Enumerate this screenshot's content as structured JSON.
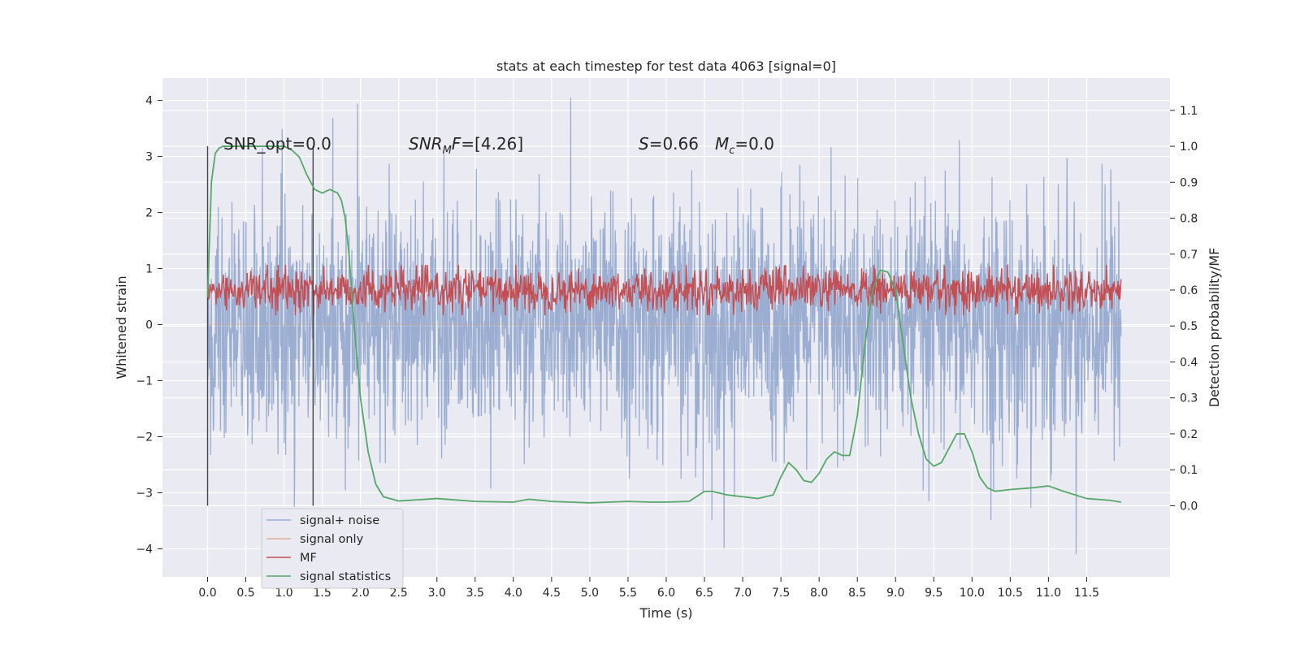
{
  "chart_data": {
    "type": "line",
    "title": "stats at each timestep for test data 4063 [signal=0]",
    "xlabel": "Time (s)",
    "ylabel_left": "Whitened strain",
    "ylabel_right": "Detection probability/MF",
    "xlim": [
      -0.59,
      12.59
    ],
    "ylim_left": [
      -4.5,
      4.4
    ],
    "ylim_right": [
      -0.198,
      1.19
    ],
    "x_ticks": [
      "0.0",
      "0.5",
      "1.0",
      "1.5",
      "2.0",
      "2.5",
      "3.0",
      "3.5",
      "4.0",
      "4.5",
      "5.0",
      "5.5",
      "6.0",
      "6.5",
      "7.0",
      "7.5",
      "8.0",
      "8.5",
      "9.0",
      "9.5",
      "10.0",
      "10.5",
      "11.0",
      "11.5"
    ],
    "y_ticks_left": [
      "4",
      "3",
      "2",
      "1",
      "0",
      "−1",
      "−2",
      "−3",
      "−4"
    ],
    "y_ticks_right": [
      "1.1",
      "1.0",
      "0.9",
      "0.8",
      "0.7",
      "0.6",
      "0.5",
      "0.4",
      "0.3",
      "0.2",
      "0.1",
      "0.0"
    ],
    "grid": true,
    "legend_position": "lower-left",
    "annotations": {
      "snr_opt": "SNR_opt=0.0",
      "snr_mf_prefix": "SNR",
      "snr_mf_sub": "M",
      "snr_mf_suffix": "F=[4.26]",
      "s_label": "S",
      "s_value": "=0.66",
      "mc_label": "M",
      "mc_sub": "c",
      "mc_value": "=0.0"
    },
    "vertical_markers": [
      0.0,
      1.38
    ],
    "series": [
      {
        "name": "signal+ noise",
        "axis": "left",
        "color": "#4c72b0",
        "description_values": {
          "x_range": [
            0.0,
            11.95
          ],
          "typical_envelope": [
            -2.0,
            2.0
          ],
          "peak_max": 4.05,
          "peak_min": -4.1
        }
      },
      {
        "name": "signal only",
        "axis": "left",
        "color": "#dd8452",
        "values_flat": 0.0
      },
      {
        "name": "MF",
        "axis": "right",
        "color": "#c44e52",
        "description_values": {
          "x_range": [
            0.0,
            11.95
          ],
          "range": [
            0.53,
            0.67
          ]
        }
      },
      {
        "name": "signal statistics",
        "axis": "right",
        "color": "#55a868",
        "x": [
          0.0,
          0.05,
          0.1,
          0.15,
          0.2,
          0.3,
          0.5,
          0.8,
          1.0,
          1.1,
          1.2,
          1.3,
          1.4,
          1.5,
          1.6,
          1.7,
          1.75,
          1.8,
          1.85,
          1.9,
          1.95,
          2.0,
          2.1,
          2.2,
          2.3,
          2.5,
          3.0,
          3.5,
          4.0,
          4.2,
          4.5,
          5.0,
          5.5,
          5.8,
          6.0,
          6.3,
          6.5,
          6.6,
          6.8,
          7.0,
          7.2,
          7.4,
          7.5,
          7.6,
          7.7,
          7.8,
          7.9,
          8.0,
          8.1,
          8.2,
          8.3,
          8.4,
          8.5,
          8.6,
          8.7,
          8.8,
          8.9,
          9.0,
          9.1,
          9.2,
          9.3,
          9.4,
          9.5,
          9.6,
          9.7,
          9.8,
          9.9,
          10.0,
          10.1,
          10.2,
          10.3,
          10.5,
          10.8,
          11.0,
          11.2,
          11.5,
          11.8,
          11.95
        ],
        "y": [
          0.58,
          0.9,
          0.98,
          0.995,
          1.0,
          1.0,
          1.0,
          1.0,
          1.0,
          0.99,
          0.97,
          0.92,
          0.88,
          0.87,
          0.88,
          0.87,
          0.85,
          0.8,
          0.7,
          0.55,
          0.42,
          0.3,
          0.15,
          0.06,
          0.025,
          0.013,
          0.02,
          0.012,
          0.01,
          0.018,
          0.012,
          0.008,
          0.012,
          0.01,
          0.01,
          0.012,
          0.04,
          0.04,
          0.03,
          0.025,
          0.02,
          0.03,
          0.08,
          0.12,
          0.1,
          0.07,
          0.065,
          0.09,
          0.13,
          0.15,
          0.14,
          0.14,
          0.25,
          0.45,
          0.6,
          0.655,
          0.65,
          0.6,
          0.45,
          0.3,
          0.2,
          0.13,
          0.11,
          0.12,
          0.16,
          0.2,
          0.2,
          0.15,
          0.08,
          0.05,
          0.04,
          0.045,
          0.05,
          0.055,
          0.04,
          0.02,
          0.015,
          0.01
        ]
      }
    ]
  }
}
